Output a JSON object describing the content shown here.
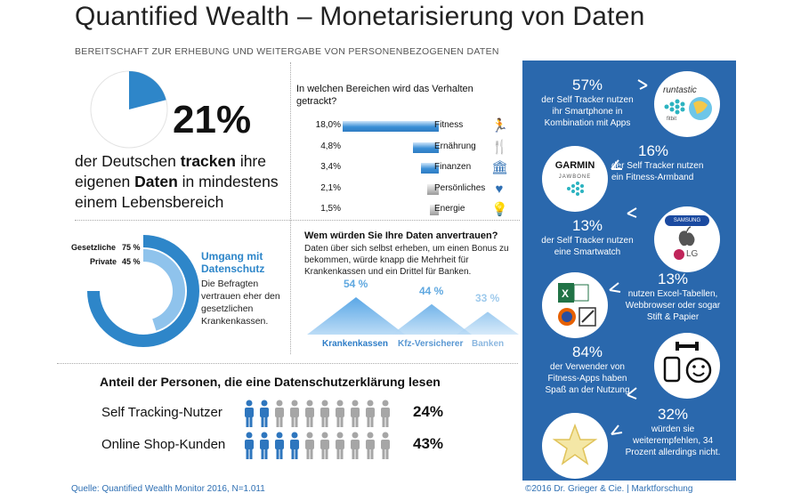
{
  "title": "Quantified Wealth – Monetarisierung von Daten",
  "subtitle": "BEREITSCHAFT ZUR ERHEBUNG UND WEITERGABE VON PERSONENBEZOGENEN DATEN",
  "tracking": {
    "percent_label": "21%",
    "percent_value": 21,
    "text_1": "der Deutschen ",
    "text_bold_1": "tracken",
    "text_2": " ihre eigenen ",
    "text_bold_2": "Daten",
    "text_3": " in mindestens einem Lebensbereich"
  },
  "datenschutz": {
    "label_1": "Gesetzliche",
    "value_label_1": "75 %",
    "label_2": "Private",
    "value_label_2": "45 %",
    "title": "Umgang mit Datenschutz",
    "text": "Die Befragten vertrauen eher den gesetzlichen Krankenkassen."
  },
  "tracked_question": "In welchen Bereichen wird das Verhalten getrackt?",
  "trust": {
    "question": "Wem würden Sie Ihre Daten anvertrauen?",
    "text": "Daten über sich selbst erheben, um einen Bonus zu bekommen, würde knapp die Mehrheit für Krankenkassen und ein Drittel für Banken."
  },
  "privacy": {
    "title": "Anteil der Personen, die eine Datenschutzerklärung  lesen",
    "rows": [
      {
        "label": "Self Tracking-Nutzer",
        "value_label": "24%",
        "value": 24
      },
      {
        "label": "Online Shop-Kunden",
        "value_label": "43%",
        "value": 43
      }
    ]
  },
  "panel": {
    "items": [
      {
        "pct": "57%",
        "text": "der Self Tracker nutzen\nihr Smartphone  in\nKombination mit Apps"
      },
      {
        "pct": "16%",
        "text": "der Self Tracker nutzen\nein Fitness-Armband"
      },
      {
        "pct": "13%",
        "text": "der Self Tracker nutzen\neine Smartwatch"
      },
      {
        "pct": "13%",
        "text": "nutzen Excel-Tabellen,\nWebbrowser oder sogar\nStift & Papier"
      },
      {
        "pct": "84%",
        "text": "der Verwender von\nFitness-Apps haben\nSpaß an der Nutzung"
      },
      {
        "pct": "32%",
        "text": "würden sie\nweiterempfehlen, 34\nProzent allerdings nicht."
      }
    ],
    "logo_runtastic": "runtastic",
    "logo_fitbit": "fitbit",
    "logo_garmin": "GARMIN",
    "logo_jawbone": "JAWBONE",
    "logo_samsung": "SAMSUNG",
    "logo_lg": "LG"
  },
  "source": "Quelle: Quantified Wealth Monitor 2016, N=1.011",
  "copyright": "©2016 Dr. Grieger & Cie. | Marktforschung",
  "colors": {
    "accent": "#2e86c9",
    "panel": "#2a68ad"
  },
  "chart_data": [
    {
      "type": "pie",
      "values": [
        21,
        79
      ]
    },
    {
      "type": "bar",
      "categories": [
        "Gesetzliche",
        "Private"
      ],
      "values": [
        75,
        45
      ]
    },
    {
      "type": "bar",
      "title": "In welchen Bereichen wird das Verhalten getrackt?",
      "categories": [
        "Fitness",
        "Ernährung",
        "Finanzen",
        "Persönliches",
        "Energie"
      ],
      "values": [
        18.0,
        4.8,
        3.4,
        2.1,
        1.5
      ],
      "value_labels": [
        "18,0%",
        "4,8%",
        "3,4%",
        "2,1%",
        "1,5%"
      ],
      "icons": [
        "runner-icon",
        "cutlery-icon",
        "bank-icon",
        "heart-icon",
        "lightbulb-icon"
      ]
    },
    {
      "type": "bar",
      "title": "Wem würden Sie Ihre Daten anvertrauen?",
      "categories": [
        "Krankenkassen",
        "Kfz-Versicherer",
        "Banken"
      ],
      "values": [
        54,
        44,
        33
      ],
      "value_labels": [
        "54 %",
        "44 %",
        "33 %"
      ]
    }
  ]
}
